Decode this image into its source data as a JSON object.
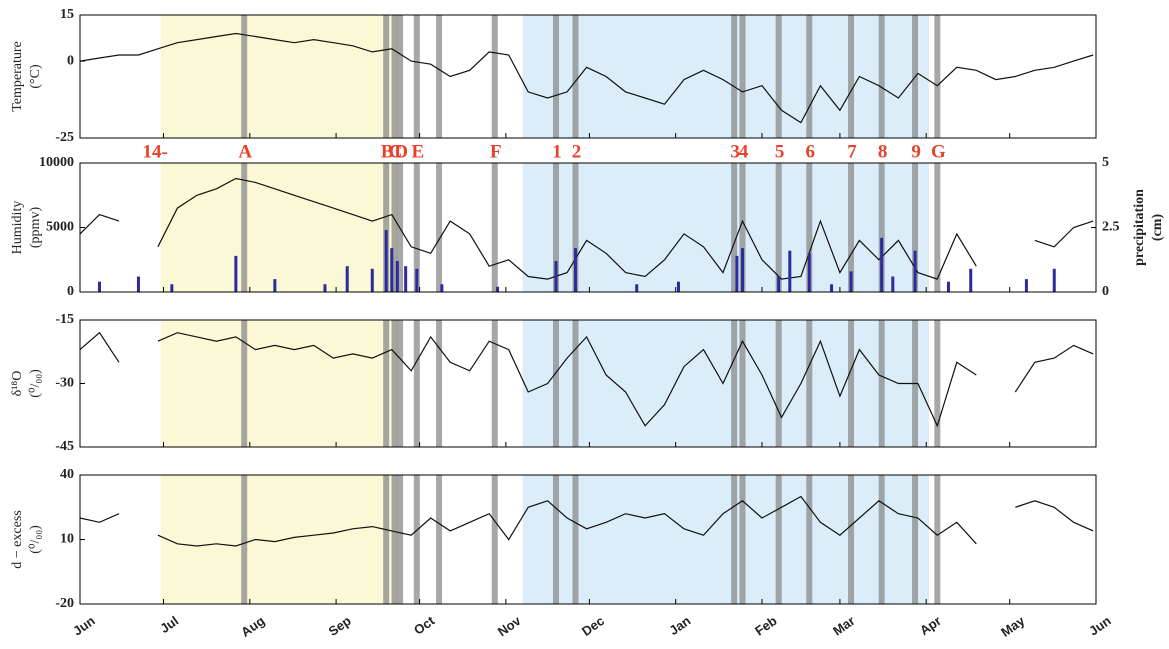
{
  "chart_data": [
    {
      "type": "line",
      "ylabel": [
        "Temperature",
        "(°C)"
      ],
      "ylim": [
        -25,
        15
      ],
      "yticks": [
        -25,
        0,
        15
      ],
      "bands": [
        {
          "start": 29,
          "end": 114,
          "color": "#fbf8d6"
        },
        {
          "start": 159,
          "end": 305,
          "color": "#dcedfa"
        }
      ],
      "events": [
        {
          "x": 59,
          "label": "A"
        },
        {
          "x": 110,
          "label": "B"
        },
        {
          "x": 113,
          "label": "C"
        },
        {
          "x": 115,
          "label": "D"
        },
        {
          "x": 121,
          "label": "E"
        },
        {
          "x": 129
        },
        {
          "x": 149,
          "label": "F"
        },
        {
          "x": 171,
          "label": "1"
        },
        {
          "x": 178,
          "label": "2"
        },
        {
          "x": 235,
          "label": "3"
        },
        {
          "x": 238,
          "label": "4"
        },
        {
          "x": 251,
          "label": "5"
        },
        {
          "x": 262,
          "label": "6"
        },
        {
          "x": 277,
          "label": "7"
        },
        {
          "x": 288,
          "label": "8"
        },
        {
          "x": 300,
          "label": "9"
        },
        {
          "x": 308,
          "label": "G"
        }
      ],
      "annotations": [
        {
          "x": 27,
          "text": "14-"
        }
      ],
      "x": [
        0,
        7,
        14,
        21,
        28,
        35,
        42,
        49,
        56,
        63,
        70,
        77,
        84,
        91,
        98,
        105,
        112,
        119,
        126,
        133,
        140,
        147,
        154,
        161,
        168,
        175,
        182,
        189,
        196,
        203,
        210,
        217,
        224,
        231,
        238,
        245,
        252,
        259,
        266,
        273,
        280,
        287,
        294,
        301,
        308,
        315,
        322,
        329,
        336,
        343,
        350,
        357,
        364
      ],
      "series": [
        {
          "name": "Temperature",
          "color": "#111111",
          "values": [
            0,
            1,
            2,
            2,
            4,
            6,
            7,
            8,
            9,
            8,
            7,
            6,
            7,
            6,
            5,
            3,
            4,
            0,
            -1,
            -5,
            -3,
            3,
            2,
            -10,
            -12,
            -10,
            -2,
            -5,
            -10,
            -12,
            -14,
            -6,
            -3,
            -6,
            -10,
            -8,
            -16,
            -20,
            -8,
            -16,
            -5,
            -8,
            -12,
            -4,
            -8,
            -2,
            -3,
            -6,
            -5,
            -3,
            -2,
            0,
            2
          ]
        }
      ]
    },
    {
      "type": "line",
      "ylabel": [
        "Humidity",
        "(ppmv)"
      ],
      "ylim": [
        0,
        10000
      ],
      "yticks": [
        0,
        5000,
        10000
      ],
      "y2label": [
        "precipitation",
        "(cm)"
      ],
      "y2lim": [
        0,
        5
      ],
      "y2ticks": [
        0,
        2.5,
        5
      ],
      "x": [
        0,
        7,
        14,
        21,
        28,
        35,
        42,
        49,
        56,
        63,
        70,
        77,
        84,
        91,
        98,
        105,
        112,
        119,
        126,
        133,
        140,
        147,
        154,
        161,
        168,
        175,
        182,
        189,
        196,
        203,
        210,
        217,
        224,
        231,
        238,
        245,
        252,
        259,
        266,
        273,
        280,
        287,
        294,
        301,
        308,
        315,
        322,
        329,
        336,
        343,
        350,
        357,
        364
      ],
      "series": [
        {
          "name": "Humidity",
          "color": "#111111",
          "values": [
            4500,
            6000,
            5500,
            null,
            3500,
            6500,
            7500,
            8000,
            8800,
            8500,
            8000,
            7500,
            7000,
            6500,
            6000,
            5500,
            6000,
            3500,
            3000,
            5500,
            4500,
            2000,
            2500,
            1200,
            1000,
            1500,
            4000,
            3000,
            1500,
            1200,
            2500,
            4500,
            3500,
            1500,
            5500,
            2500,
            1000,
            1200,
            5500,
            1500,
            4000,
            2500,
            4000,
            1500,
            1000,
            4500,
            2000,
            null,
            null,
            4000,
            3500,
            5000,
            5500
          ]
        },
        {
          "name": "precipitation",
          "type": "bar",
          "axis": "y2",
          "color": "#2b2b9b",
          "x": [
            7,
            21,
            33,
            56,
            70,
            88,
            96,
            105,
            110,
            112,
            114,
            117,
            121,
            130,
            150,
            171,
            178,
            200,
            215,
            236,
            238,
            251,
            255,
            262,
            270,
            277,
            288,
            292,
            300,
            312,
            320,
            340,
            350
          ],
          "values": [
            0.4,
            0.6,
            0.3,
            1.4,
            0.5,
            0.3,
            1,
            0.9,
            2.4,
            1.7,
            1.2,
            1,
            0.9,
            0.3,
            0.2,
            1.2,
            1.7,
            0.3,
            0.4,
            1.4,
            1.7,
            0.6,
            1.6,
            1.5,
            0.3,
            0.8,
            2.1,
            0.6,
            1.6,
            0.4,
            0.9,
            0.5,
            0.9
          ]
        }
      ]
    },
    {
      "type": "line",
      "ylabel": [
        "δ¹⁸O",
        "(⁰/₀₀)"
      ],
      "ylim": [
        -45,
        -15
      ],
      "yticks": [
        -45,
        -30,
        -15
      ],
      "x": [
        0,
        7,
        14,
        21,
        28,
        35,
        42,
        49,
        56,
        63,
        70,
        77,
        84,
        91,
        98,
        105,
        112,
        119,
        126,
        133,
        140,
        147,
        154,
        161,
        168,
        175,
        182,
        189,
        196,
        203,
        210,
        217,
        224,
        231,
        238,
        245,
        252,
        259,
        266,
        273,
        280,
        287,
        294,
        301,
        308,
        315,
        322,
        329,
        336,
        343,
        350,
        357,
        364
      ],
      "series": [
        {
          "name": "δ18O",
          "color": "#111111",
          "values": [
            -22,
            -18,
            -25,
            null,
            -20,
            -18,
            -19,
            -20,
            -19,
            -22,
            -21,
            -22,
            -21,
            -24,
            -23,
            -24,
            -22,
            -27,
            -19,
            -25,
            -27,
            -20,
            -22,
            -32,
            -30,
            -24,
            -19,
            -28,
            -32,
            -40,
            -35,
            -26,
            -22,
            -30,
            -20,
            -28,
            -38,
            -30,
            -20,
            -33,
            -22,
            -28,
            -30,
            -30,
            -40,
            -25,
            -28,
            null,
            -32,
            -25,
            -24,
            -21,
            -23
          ]
        }
      ]
    },
    {
      "type": "line",
      "ylabel": [
        "d − excess",
        "(⁰/₀₀)"
      ],
      "ylim": [
        -20,
        40
      ],
      "yticks": [
        -20,
        10,
        40
      ],
      "xlim": [
        0,
        365
      ],
      "xticks": [
        {
          "value": 0,
          "label": "Jun"
        },
        {
          "value": 30,
          "label": "Jul"
        },
        {
          "value": 61,
          "label": "Aug"
        },
        {
          "value": 92,
          "label": "Sep"
        },
        {
          "value": 122,
          "label": "Oct"
        },
        {
          "value": 153,
          "label": "Nov"
        },
        {
          "value": 183,
          "label": "Dec"
        },
        {
          "value": 214,
          "label": "Jan"
        },
        {
          "value": 245,
          "label": "Feb"
        },
        {
          "value": 273,
          "label": "Mar"
        },
        {
          "value": 304,
          "label": "Apr"
        },
        {
          "value": 334,
          "label": "May"
        },
        {
          "value": 365,
          "label": "Jun"
        }
      ],
      "x": [
        0,
        7,
        14,
        21,
        28,
        35,
        42,
        49,
        56,
        63,
        70,
        77,
        84,
        91,
        98,
        105,
        112,
        119,
        126,
        133,
        140,
        147,
        154,
        161,
        168,
        175,
        182,
        189,
        196,
        203,
        210,
        217,
        224,
        231,
        238,
        245,
        252,
        259,
        266,
        273,
        280,
        287,
        294,
        301,
        308,
        315,
        322,
        329,
        336,
        343,
        350,
        357,
        364
      ],
      "series": [
        {
          "name": "d-excess",
          "color": "#111111",
          "values": [
            20,
            18,
            22,
            null,
            12,
            8,
            7,
            8,
            7,
            10,
            9,
            11,
            12,
            13,
            15,
            16,
            14,
            12,
            20,
            14,
            18,
            22,
            10,
            25,
            28,
            20,
            15,
            18,
            22,
            20,
            22,
            15,
            12,
            22,
            28,
            20,
            25,
            30,
            18,
            12,
            20,
            28,
            22,
            20,
            12,
            18,
            8,
            null,
            25,
            28,
            25,
            18,
            14
          ]
        }
      ]
    }
  ]
}
